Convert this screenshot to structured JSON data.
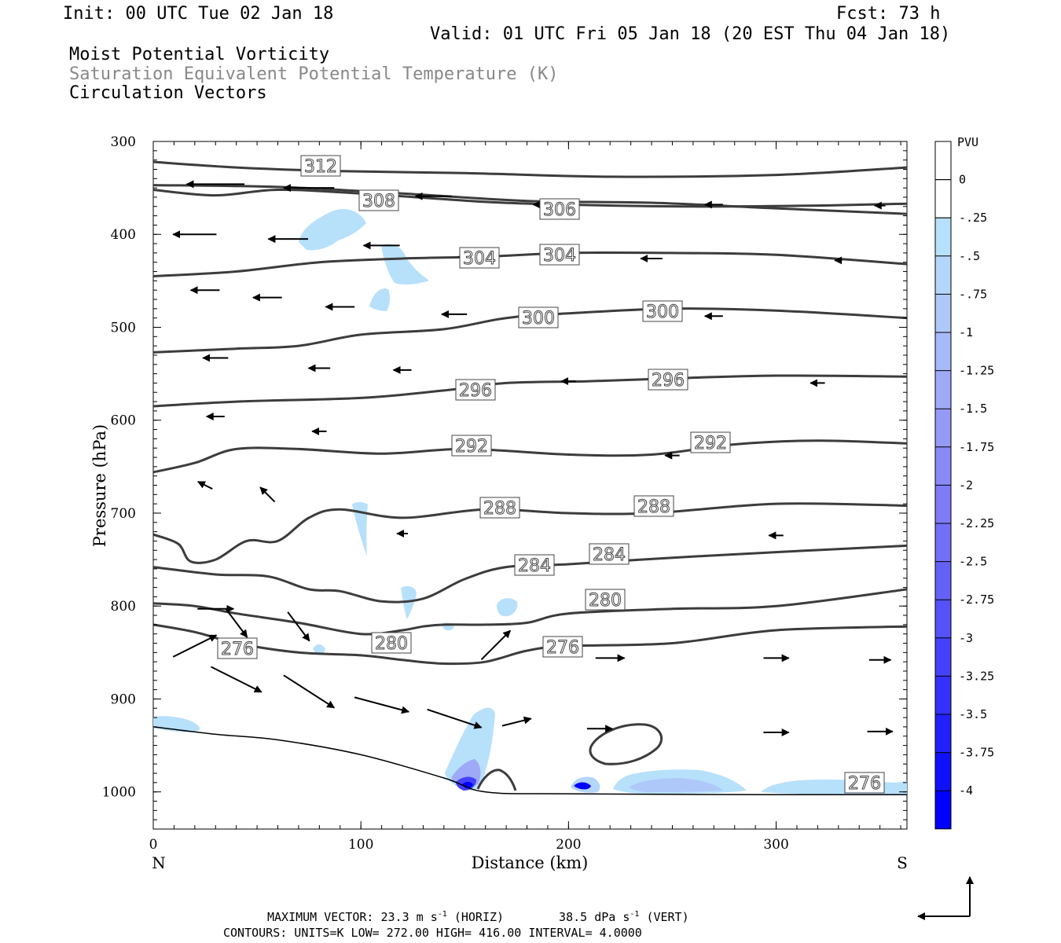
{
  "header": {
    "init": "Init: 00 UTC Tue 02 Jan 18",
    "fcst": "Fcst:   73 h",
    "valid": "Valid: 01 UTC Fri 05 Jan 18 (20 EST Thu 04 Jan 18)",
    "field1": "Moist Potential Vorticity",
    "field2": "Saturation Equivalent Potential Temperature (K)",
    "field3": "Circulation Vectors"
  },
  "footer": {
    "line1_a": "MAXIMUM VECTOR:  23.3 m s",
    "line1_b": "(HORIZ)",
    "line1_c": "38.5 dPa s",
    "line1_d": "(VERT)",
    "sup": "-1",
    "line2": "CONTOURS:  UNITS=K  LOW=  272.00       HIGH=  416.00       INTERVAL=    4.0000"
  },
  "colors": {
    "contour": "#3c3c3c",
    "vector": "#000000",
    "shade_light": "#b7e0fb",
    "shade_dark": "#0000ff"
  },
  "chart_data": {
    "type": "cross-section",
    "xlabel": "Distance (km)",
    "ylabel": "Pressure (hPa)",
    "xlim": [
      0,
      363
    ],
    "ylim": [
      1040,
      300
    ],
    "x_ticks": [
      0,
      100,
      200,
      300
    ],
    "y_ticks": [
      300,
      400,
      500,
      600,
      700,
      800,
      900,
      1000
    ],
    "left_end_label": "N",
    "right_end_label": "S",
    "colorbar": {
      "unit": "PVU",
      "levels": [
        "0",
        "-.25",
        "-.5",
        "-.75",
        "-1",
        "-1.25",
        "-1.5",
        "-1.75",
        "-2",
        "-2.25",
        "-2.5",
        "-2.75",
        "-3",
        "-3.25",
        "-3.5",
        "-3.75",
        "-4"
      ],
      "colors": [
        "#ffffff",
        "#ffffff",
        "#b7e0fb",
        "#b4d6fa",
        "#aec9f9",
        "#a6b9f8",
        "#9eaaf7",
        "#959af6",
        "#8a8af6",
        "#7f7bf6",
        "#7370f7",
        "#6461f8",
        "#5552f9",
        "#4541fb",
        "#3431fc",
        "#2220fd",
        "#0f10fe",
        "#0000ff"
      ]
    },
    "theta_es_contours": [
      {
        "value": 312,
        "points": [
          [
            0,
            322
          ],
          [
            40,
            328
          ],
          [
            90,
            332
          ],
          [
            150,
            334
          ],
          [
            220,
            338
          ],
          [
            300,
            336
          ],
          [
            363,
            328
          ]
        ]
      },
      {
        "value": 308,
        "points": [
          [
            0,
            352
          ],
          [
            30,
            358
          ],
          [
            60,
            352
          ],
          [
            100,
            356
          ],
          [
            160,
            365
          ],
          [
            200,
            368
          ],
          [
            260,
            370
          ],
          [
            320,
            369
          ],
          [
            363,
            367
          ]
        ]
      },
      {
        "value": 306,
        "points": [
          [
            0,
            347
          ],
          [
            60,
            349
          ],
          [
            120,
            356
          ],
          [
            180,
            364
          ],
          [
            240,
            366
          ],
          [
            300,
            372
          ],
          [
            363,
            378
          ]
        ]
      },
      {
        "value": 304,
        "points": [
          [
            0,
            445
          ],
          [
            40,
            440
          ],
          [
            80,
            430
          ],
          [
            120,
            426
          ],
          [
            160,
            424
          ],
          [
            200,
            420
          ],
          [
            250,
            420
          ],
          [
            300,
            422
          ],
          [
            363,
            432
          ]
        ]
      },
      {
        "value": 300,
        "points": [
          [
            0,
            527
          ],
          [
            40,
            523
          ],
          [
            70,
            520
          ],
          [
            100,
            508
          ],
          [
            140,
            502
          ],
          [
            170,
            490
          ],
          [
            200,
            485
          ],
          [
            250,
            480
          ],
          [
            300,
            482
          ],
          [
            363,
            490
          ]
        ]
      },
      {
        "value": 296,
        "points": [
          [
            0,
            585
          ],
          [
            40,
            580
          ],
          [
            100,
            576
          ],
          [
            140,
            568
          ],
          [
            170,
            560
          ],
          [
            210,
            558
          ],
          [
            250,
            555
          ],
          [
            300,
            552
          ],
          [
            363,
            553
          ]
        ]
      },
      {
        "value": 292,
        "points": [
          [
            0,
            656
          ],
          [
            20,
            646
          ],
          [
            40,
            631
          ],
          [
            70,
            631
          ],
          [
            110,
            636
          ],
          [
            150,
            631
          ],
          [
            200,
            637
          ],
          [
            240,
            637
          ],
          [
            280,
            626
          ],
          [
            320,
            622
          ],
          [
            363,
            625
          ]
        ]
      },
      {
        "value": 288,
        "points": [
          [
            0,
            723
          ],
          [
            12,
            733
          ],
          [
            18,
            752
          ],
          [
            30,
            750
          ],
          [
            45,
            730
          ],
          [
            60,
            730
          ],
          [
            75,
            705
          ],
          [
            90,
            696
          ],
          [
            120,
            705
          ],
          [
            160,
            696
          ],
          [
            200,
            700
          ],
          [
            240,
            700
          ],
          [
            300,
            690
          ],
          [
            363,
            692
          ]
        ]
      },
      {
        "value": 284,
        "points": [
          [
            0,
            758
          ],
          [
            30,
            766
          ],
          [
            55,
            768
          ],
          [
            75,
            782
          ],
          [
            90,
            784
          ],
          [
            110,
            795
          ],
          [
            130,
            792
          ],
          [
            150,
            771
          ],
          [
            170,
            758
          ],
          [
            200,
            755
          ],
          [
            250,
            748
          ],
          [
            300,
            742
          ],
          [
            363,
            735
          ]
        ]
      },
      {
        "value": 280,
        "points": [
          [
            0,
            797
          ],
          [
            20,
            800
          ],
          [
            40,
            808
          ],
          [
            70,
            818
          ],
          [
            100,
            830
          ],
          [
            120,
            826
          ],
          [
            130,
            822
          ],
          [
            140,
            820
          ],
          [
            160,
            820
          ],
          [
            180,
            818
          ],
          [
            200,
            808
          ],
          [
            250,
            803
          ],
          [
            300,
            800
          ],
          [
            363,
            782
          ]
        ]
      },
      {
        "value": 276,
        "points": [
          [
            0,
            820
          ],
          [
            20,
            828
          ],
          [
            40,
            840
          ],
          [
            70,
            850
          ],
          [
            100,
            853
          ],
          [
            120,
            858
          ],
          [
            140,
            862
          ],
          [
            160,
            860
          ],
          [
            180,
            848
          ],
          [
            200,
            843
          ],
          [
            250,
            840
          ],
          [
            300,
            826
          ],
          [
            363,
            822
          ]
        ]
      }
    ],
    "pv_shading": [
      {
        "x": 100,
        "y": 390,
        "value": -0.5
      },
      {
        "x": 120,
        "y": 455,
        "value": -0.5
      },
      {
        "x": 150,
        "y": 1003,
        "value": -4
      },
      {
        "x": 205,
        "y": 1002,
        "value": -4
      },
      {
        "x": 260,
        "y": 993,
        "value": -0.75
      },
      {
        "x": 340,
        "y": 1000,
        "value": -0.5
      }
    ],
    "circulation_vectors": [
      {
        "x": 30,
        "p": 346,
        "u": -16,
        "w": 0
      },
      {
        "x": 75,
        "p": 350,
        "u": -14,
        "w": 0
      },
      {
        "x": 135,
        "p": 359,
        "u": -10,
        "w": 0
      },
      {
        "x": 190,
        "p": 368,
        "u": -8,
        "w": 0
      },
      {
        "x": 270,
        "p": 368,
        "u": -5,
        "w": 0
      },
      {
        "x": 350,
        "p": 369,
        "u": -3,
        "w": 0
      },
      {
        "x": 20,
        "p": 400,
        "u": -12,
        "w": 0
      },
      {
        "x": 65,
        "p": 405,
        "u": -11,
        "w": 0
      },
      {
        "x": 110,
        "p": 412,
        "u": -10,
        "w": 0
      },
      {
        "x": 155,
        "p": 424,
        "u": -9,
        "w": 0
      },
      {
        "x": 240,
        "p": 426,
        "u": -6,
        "w": 0
      },
      {
        "x": 330,
        "p": 428,
        "u": -2,
        "w": 0
      },
      {
        "x": 25,
        "p": 460,
        "u": -8,
        "w": 0
      },
      {
        "x": 55,
        "p": 468,
        "u": -8,
        "w": 0
      },
      {
        "x": 90,
        "p": 478,
        "u": -8,
        "w": 0
      },
      {
        "x": 145,
        "p": 486,
        "u": -7,
        "w": 0
      },
      {
        "x": 270,
        "p": 488,
        "u": -5,
        "w": 0
      },
      {
        "x": 30,
        "p": 533,
        "u": -7,
        "w": 0
      },
      {
        "x": 80,
        "p": 544,
        "u": -6,
        "w": 0
      },
      {
        "x": 120,
        "p": 546,
        "u": -5,
        "w": 0
      },
      {
        "x": 200,
        "p": 558,
        "u": -4,
        "w": 0
      },
      {
        "x": 320,
        "p": 560,
        "u": -4,
        "w": 0
      },
      {
        "x": 30,
        "p": 596,
        "u": -5,
        "w": 0
      },
      {
        "x": 80,
        "p": 612,
        "u": -4,
        "w": 0
      },
      {
        "x": 250,
        "p": 638,
        "u": -4,
        "w": 0
      },
      {
        "x": 25,
        "p": 670,
        "u": -4,
        "w": 2
      },
      {
        "x": 55,
        "p": 680,
        "u": -4,
        "w": 4
      },
      {
        "x": 120,
        "p": 722,
        "u": -3,
        "w": 0
      },
      {
        "x": 300,
        "p": 724,
        "u": -4,
        "w": 0
      },
      {
        "x": 30,
        "p": 803,
        "u": 10,
        "w": 0
      },
      {
        "x": 40,
        "p": 818,
        "u": 6,
        "w": -8
      },
      {
        "x": 70,
        "p": 822,
        "u": 6,
        "w": -8
      },
      {
        "x": 20,
        "p": 843,
        "u": 12,
        "w": 6
      },
      {
        "x": 40,
        "p": 879,
        "u": 14,
        "w": -7
      },
      {
        "x": 75,
        "p": 892,
        "u": 14,
        "w": -9
      },
      {
        "x": 110,
        "p": 906,
        "u": 15,
        "w": -4
      },
      {
        "x": 145,
        "p": 921,
        "u": 15,
        "w": -5
      },
      {
        "x": 165,
        "p": 842,
        "u": 8,
        "w": 8
      },
      {
        "x": 175,
        "p": 925,
        "u": 8,
        "w": 2
      },
      {
        "x": 215,
        "p": 932,
        "u": 7,
        "w": 0
      },
      {
        "x": 300,
        "p": 936,
        "u": 7,
        "w": 0
      },
      {
        "x": 350,
        "p": 935,
        "u": 7,
        "w": 0
      },
      {
        "x": 220,
        "p": 856,
        "u": 8,
        "w": 0
      },
      {
        "x": 300,
        "p": 856,
        "u": 7,
        "w": 0
      },
      {
        "x": 350,
        "p": 858,
        "u": 6,
        "w": 0
      }
    ],
    "ground_surface_hPa": [
      [
        0,
        930
      ],
      [
        30,
        938
      ],
      [
        60,
        944
      ],
      [
        100,
        960
      ],
      [
        140,
        985
      ],
      [
        160,
        1000
      ],
      [
        200,
        1002
      ],
      [
        300,
        1003
      ],
      [
        363,
        1003
      ]
    ]
  }
}
